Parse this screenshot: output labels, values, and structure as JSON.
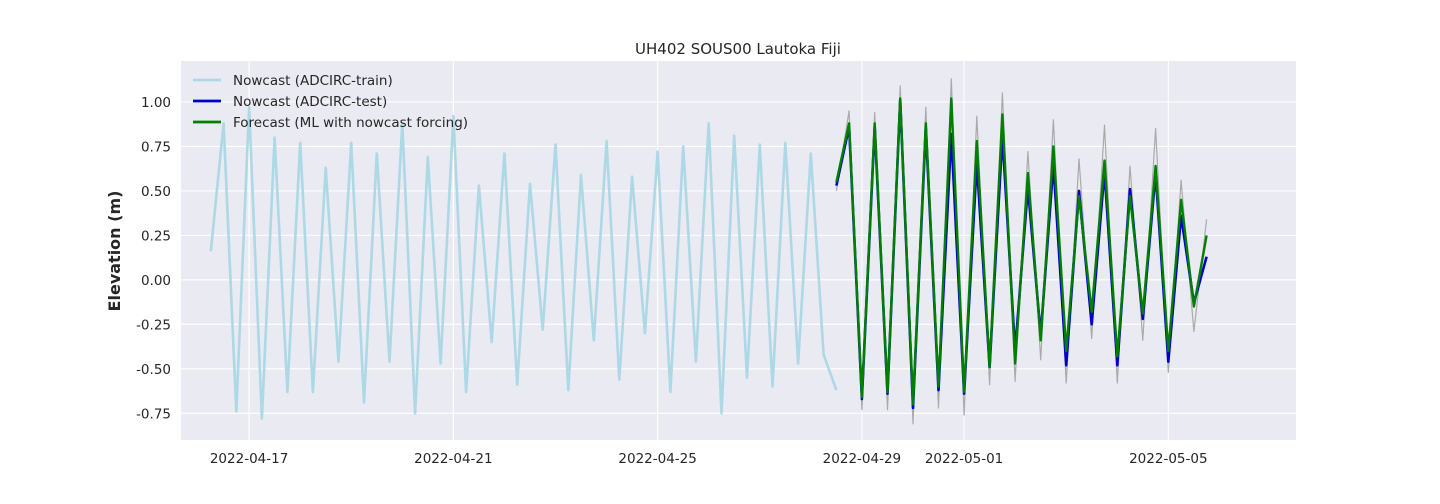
{
  "chart_data": {
    "type": "line",
    "title": "UH402 SOUS00 Lautoka Fiji",
    "xlabel": "",
    "ylabel": "Elevation (m)",
    "x_type": "date",
    "x_ticks": [
      "2022-04-17",
      "2022-04-21",
      "2022-04-25",
      "2022-04-29",
      "2022-05-01",
      "2022-05-05"
    ],
    "xlim": [
      "2022-04-15T16:00",
      "2022-05-07T12:00"
    ],
    "y_ticks": [
      "1.00",
      "0.75",
      "0.50",
      "0.25",
      "0.00",
      "-0.25",
      "-0.50",
      "-0.75"
    ],
    "ylim": [
      -0.9,
      1.23
    ],
    "grid": true,
    "legend_location": "upper left",
    "colors": {
      "background": "#EAEAF2",
      "grid": "#FFFFFF",
      "train": "#ADD8E6",
      "test": "#0000CD",
      "forecast": "#008000",
      "observed": "#AAAAAA"
    },
    "legend": [
      {
        "label": "Nowcast (ADCIRC-train)",
        "color": "#ADD8E6"
      },
      {
        "label": "Nowcast (ADCIRC-test)",
        "color": "#0000CD"
      },
      {
        "label": "Forecast (ML with nowcast forcing)",
        "color": "#008000"
      }
    ],
    "series": [
      {
        "name": "Nowcast (ADCIRC-train)",
        "color": "#ADD8E6",
        "x": [
          "2022-04-16T06:00",
          "2022-04-16T12:00",
          "2022-04-16T18:00",
          "2022-04-17T00:00",
          "2022-04-17T06:00",
          "2022-04-17T12:00",
          "2022-04-17T18:00",
          "2022-04-18T00:00",
          "2022-04-18T06:00",
          "2022-04-18T12:00",
          "2022-04-18T18:00",
          "2022-04-19T00:00",
          "2022-04-19T06:00",
          "2022-04-19T12:00",
          "2022-04-19T18:00",
          "2022-04-20T00:00",
          "2022-04-20T06:00",
          "2022-04-20T12:00",
          "2022-04-20T18:00",
          "2022-04-21T00:00",
          "2022-04-21T06:00",
          "2022-04-21T12:00",
          "2022-04-21T18:00",
          "2022-04-22T00:00",
          "2022-04-22T06:00",
          "2022-04-22T12:00",
          "2022-04-22T18:00",
          "2022-04-23T00:00",
          "2022-04-23T06:00",
          "2022-04-23T12:00",
          "2022-04-23T18:00",
          "2022-04-24T00:00",
          "2022-04-24T06:00",
          "2022-04-24T12:00",
          "2022-04-24T18:00",
          "2022-04-25T00:00",
          "2022-04-25T06:00",
          "2022-04-25T12:00",
          "2022-04-25T18:00",
          "2022-04-26T00:00",
          "2022-04-26T06:00",
          "2022-04-26T12:00",
          "2022-04-26T18:00",
          "2022-04-27T00:00",
          "2022-04-27T06:00",
          "2022-04-27T12:00",
          "2022-04-27T18:00",
          "2022-04-28T00:00",
          "2022-04-28T06:00",
          "2022-04-28T12:00"
        ],
        "y": [
          0.16,
          0.88,
          -0.74,
          0.97,
          -0.78,
          0.8,
          -0.63,
          0.77,
          -0.63,
          0.63,
          -0.46,
          0.77,
          -0.69,
          0.71,
          -0.46,
          0.88,
          -0.75,
          0.69,
          -0.47,
          0.92,
          -0.63,
          0.53,
          -0.35,
          0.71,
          -0.59,
          0.54,
          -0.28,
          0.76,
          -0.62,
          0.59,
          -0.34,
          0.78,
          -0.56,
          0.58,
          -0.3,
          0.72,
          -0.63,
          0.75,
          -0.46,
          0.88,
          -0.75,
          0.81,
          -0.55,
          0.76,
          -0.6,
          0.77,
          -0.47,
          0.71,
          -0.42,
          -0.62
        ]
      },
      {
        "name": "observed",
        "color": "#AAAAAA",
        "x": [
          "2022-04-28T12:00",
          "2022-04-28T18:00",
          "2022-04-29T00:00",
          "2022-04-29T06:00",
          "2022-04-29T12:00",
          "2022-04-29T18:00",
          "2022-04-30T00:00",
          "2022-04-30T06:00",
          "2022-04-30T12:00",
          "2022-04-30T18:00",
          "2022-05-01T00:00",
          "2022-05-01T06:00",
          "2022-05-01T12:00",
          "2022-05-01T18:00",
          "2022-05-02T00:00",
          "2022-05-02T06:00",
          "2022-05-02T12:00",
          "2022-05-02T18:00",
          "2022-05-03T00:00",
          "2022-05-03T06:00",
          "2022-05-03T12:00",
          "2022-05-03T18:00",
          "2022-05-04T00:00",
          "2022-05-04T06:00",
          "2022-05-04T12:00",
          "2022-05-04T18:00",
          "2022-05-05T00:00",
          "2022-05-05T06:00",
          "2022-05-05T12:00",
          "2022-05-05T18:00"
        ],
        "y": [
          0.5,
          0.95,
          -0.73,
          0.94,
          -0.73,
          1.09,
          -0.81,
          0.97,
          -0.72,
          1.13,
          -0.76,
          0.92,
          -0.59,
          1.05,
          -0.57,
          0.72,
          -0.45,
          0.9,
          -0.58,
          0.68,
          -0.33,
          0.87,
          -0.58,
          0.64,
          -0.34,
          0.85,
          -0.52,
          0.56,
          -0.29,
          0.34
        ]
      },
      {
        "name": "Nowcast (ADCIRC-test)",
        "color": "#0000CD",
        "x": [
          "2022-04-28T12:00",
          "2022-04-28T18:00",
          "2022-04-29T00:00",
          "2022-04-29T06:00",
          "2022-04-29T12:00",
          "2022-04-29T18:00",
          "2022-04-30T00:00",
          "2022-04-30T06:00",
          "2022-04-30T12:00",
          "2022-04-30T18:00",
          "2022-05-01T00:00",
          "2022-05-01T06:00",
          "2022-05-01T12:00",
          "2022-05-01T18:00",
          "2022-05-02T00:00",
          "2022-05-02T06:00",
          "2022-05-02T12:00",
          "2022-05-02T18:00",
          "2022-05-03T00:00",
          "2022-05-03T06:00",
          "2022-05-03T12:00",
          "2022-05-03T18:00",
          "2022-05-04T00:00",
          "2022-05-04T06:00",
          "2022-05-04T12:00",
          "2022-05-04T18:00",
          "2022-05-05T00:00",
          "2022-05-05T06:00",
          "2022-05-05T12:00",
          "2022-05-05T18:00"
        ],
        "y": [
          0.53,
          0.86,
          -0.67,
          0.86,
          -0.64,
          1.01,
          -0.72,
          0.85,
          -0.62,
          0.82,
          -0.64,
          0.66,
          -0.49,
          0.81,
          -0.4,
          0.52,
          -0.31,
          0.65,
          -0.48,
          0.5,
          -0.25,
          0.61,
          -0.48,
          0.51,
          -0.22,
          0.6,
          -0.46,
          0.36,
          -0.13,
          0.13
        ]
      },
      {
        "name": "Forecast (ML with nowcast forcing)",
        "color": "#008000",
        "x": [
          "2022-04-28T12:00",
          "2022-04-28T18:00",
          "2022-04-29T00:00",
          "2022-04-29T06:00",
          "2022-04-29T12:00",
          "2022-04-29T18:00",
          "2022-04-30T00:00",
          "2022-04-30T06:00",
          "2022-04-30T12:00",
          "2022-04-30T18:00",
          "2022-05-01T00:00",
          "2022-05-01T06:00",
          "2022-05-01T12:00",
          "2022-05-01T18:00",
          "2022-05-02T00:00",
          "2022-05-02T06:00",
          "2022-05-02T12:00",
          "2022-05-02T18:00",
          "2022-05-03T00:00",
          "2022-05-03T06:00",
          "2022-05-03T12:00",
          "2022-05-03T18:00",
          "2022-05-04T00:00",
          "2022-05-04T06:00",
          "2022-05-04T12:00",
          "2022-05-04T18:00",
          "2022-05-05T00:00",
          "2022-05-05T06:00",
          "2022-05-05T12:00",
          "2022-05-05T18:00"
        ],
        "y": [
          0.55,
          0.88,
          -0.66,
          0.88,
          -0.63,
          1.02,
          -0.7,
          0.88,
          -0.6,
          1.02,
          -0.63,
          0.78,
          -0.49,
          0.93,
          -0.47,
          0.6,
          -0.34,
          0.75,
          -0.4,
          0.47,
          -0.18,
          0.67,
          -0.43,
          0.47,
          -0.19,
          0.64,
          -0.4,
          0.45,
          -0.15,
          0.25
        ]
      }
    ]
  }
}
